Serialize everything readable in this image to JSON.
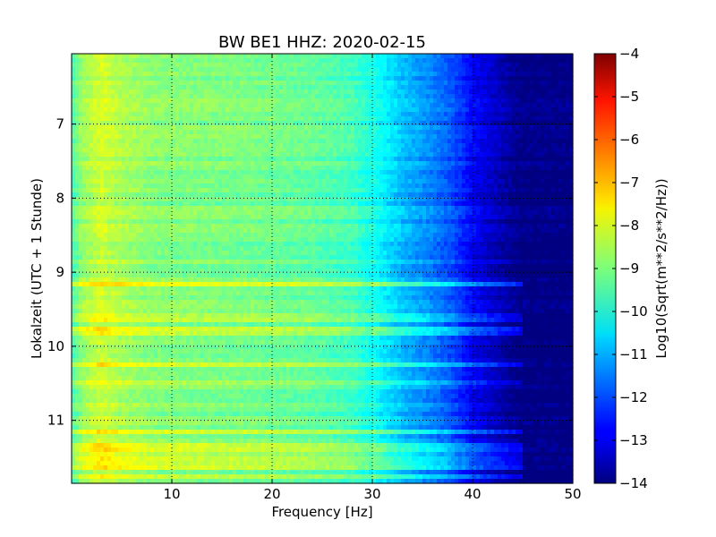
{
  "chart_data": {
    "type": "heatmap",
    "title": "BW BE1 HHZ: 2020-02-15",
    "xlabel": "Frequency [Hz]",
    "ylabel": "Lokalzeit (UTC + 1 Stunde)",
    "xlim": [
      0,
      50
    ],
    "ylim": [
      11.85,
      6.05
    ],
    "y_inverted": true,
    "x_ticks": [
      10,
      20,
      30,
      40,
      50
    ],
    "y_ticks": [
      7,
      8,
      9,
      10,
      11
    ],
    "grid": true,
    "colorbar": {
      "label": "Log10(Sqrt(m**2/s**2/Hz))",
      "range": [
        -14,
        -4
      ],
      "ticks": [
        -4,
        -5,
        -6,
        -7,
        -8,
        -9,
        -10,
        -11,
        -12,
        -13,
        -14
      ],
      "colormap": "jet"
    },
    "frequency_profile": {
      "frequency_hz": [
        0,
        1,
        3,
        5,
        8,
        12,
        18,
        24,
        28,
        31,
        33,
        36,
        38,
        40,
        42,
        44,
        45,
        50
      ],
      "value": [
        -9.6,
        -8.8,
        -8.2,
        -8.6,
        -8.9,
        -9.0,
        -9.1,
        -9.3,
        -9.6,
        -10.3,
        -10.9,
        -11.5,
        -12.0,
        -12.8,
        -13.3,
        -13.8,
        -14.0,
        -14.0
      ]
    },
    "energetic_bands": {
      "time_hours": [
        9.15,
        9.6,
        9.8,
        10.25,
        10.5,
        11.15,
        11.35,
        11.5,
        11.62,
        11.75
      ],
      "value_offset": [
        1.1,
        0.7,
        0.9,
        0.7,
        0.6,
        0.8,
        0.7,
        0.6,
        0.7,
        0.8
      ]
    }
  }
}
